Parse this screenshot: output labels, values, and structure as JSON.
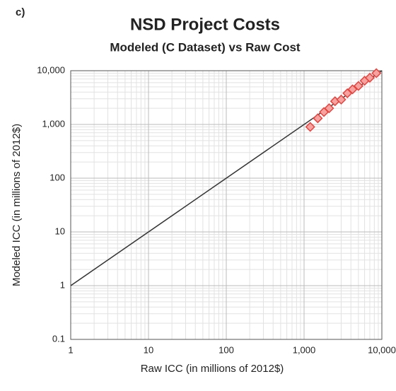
{
  "chart_data": {
    "type": "scatter",
    "panel_label": "c)",
    "title": "NSD Project Costs",
    "subtitle": "Modeled (C Dataset) vs Raw Cost",
    "x_label": "Raw ICC (in millions of 2012$)",
    "y_label": "Modeled ICC (in millions of 2012$)",
    "x": [
      1200,
      1500,
      1800,
      2100,
      2500,
      3000,
      3600,
      4200,
      5000,
      6000,
      7000,
      8500
    ],
    "values": [
      900,
      1300,
      1700,
      2000,
      2700,
      2900,
      3800,
      4500,
      5200,
      6500,
      7400,
      9000
    ],
    "color": "#e8413c",
    "log_x": true,
    "log_y": true,
    "grid": true,
    "xlim": [
      1,
      10000
    ],
    "xticks": [
      1,
      10,
      100,
      {
        "value": 1000,
        "label": "1,000"
      },
      {
        "value": 10000,
        "label": "10,000"
      }
    ],
    "ylim": [
      0.1,
      10000
    ],
    "yticks": [
      0.1,
      1,
      10,
      100,
      {
        "value": 1000,
        "label": "1,000"
      },
      {
        "value": 10000,
        "label": "10,000"
      }
    ]
  }
}
